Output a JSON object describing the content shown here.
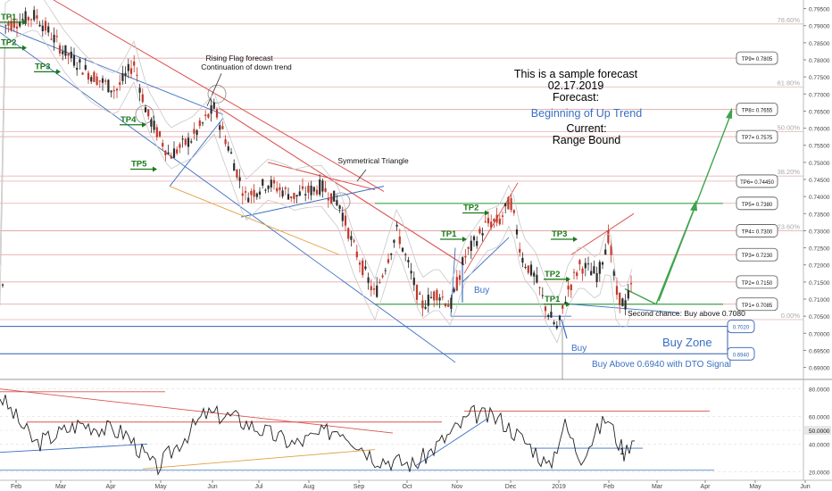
{
  "chart_data": [
    {
      "type": "candlestick",
      "timeframe_labels": [
        "Feb",
        "Mar",
        "Apr",
        "May",
        "Jun",
        "Jul",
        "Aug",
        "Sep",
        "Oct",
        "Nov",
        "Dec",
        "2019",
        "Feb",
        "Mar",
        "Apr",
        "May",
        "Jun"
      ],
      "y_ticks": [
        "0.79500",
        "0.79000",
        "0.78500",
        "0.78000",
        "0.77500",
        "0.77000",
        "0.76500",
        "0.76000",
        "0.75500",
        "0.75000",
        "0.74500",
        "0.74000",
        "0.73500",
        "0.73000",
        "0.72500",
        "0.72000",
        "0.71500",
        "0.71000",
        "0.70500",
        "0.70000",
        "0.69500",
        "0.69000"
      ],
      "fib_levels": [
        {
          "label": "78.60%",
          "price": 0.7905
        },
        {
          "label": "61.80%",
          "price": 0.772
        },
        {
          "label": "50.00%",
          "price": 0.759
        },
        {
          "label": "38.20%",
          "price": 0.746
        },
        {
          "label": "23.60%",
          "price": 0.73
        },
        {
          "label": "0.00%",
          "price": 0.704
        }
      ],
      "tp_boxes": [
        {
          "label": "TP9= 0.7805",
          "price": 0.7805
        },
        {
          "label": "TP8= 0.7655",
          "price": 0.7655
        },
        {
          "label": "TP7= 0.7575",
          "price": 0.7575
        },
        {
          "label": "TP6= 0.74450",
          "price": 0.7445
        },
        {
          "label": "TP5= 0.7380",
          "price": 0.738
        },
        {
          "label": "TP4= 0.7300",
          "price": 0.73
        },
        {
          "label": "TP3= 0.7230",
          "price": 0.723
        },
        {
          "label": "TP2= 0.7150",
          "price": 0.715
        },
        {
          "label": "TP1= 0.7085",
          "price": 0.7085
        }
      ],
      "zone_boxes": [
        {
          "label": "0.7020",
          "price": 0.702
        },
        {
          "label": "0.6940",
          "price": 0.694
        }
      ],
      "tp_markers": [
        {
          "text": "TP1",
          "color": "#1a7a1a"
        },
        {
          "text": "TP2",
          "color": "#1a7a1a"
        },
        {
          "text": "TP3",
          "color": "#1a7a1a"
        },
        {
          "text": "TP4",
          "color": "#1a7a1a"
        },
        {
          "text": "TP5",
          "color": "#1a7a1a"
        },
        {
          "text": "TP2",
          "color": "#1a7a1a"
        },
        {
          "text": "TP1",
          "color": "#1a7a1a"
        },
        {
          "text": "TP3",
          "color": "#1a7a1a"
        },
        {
          "text": "TP2",
          "color": "#1a7a1a"
        },
        {
          "text": "TP1",
          "color": "#1a7a1a"
        }
      ],
      "annotations": {
        "rising_flag_1": "Rising Flag forecast",
        "rising_flag_2": "Continuation of down trend",
        "sym_triangle": "Symmetrical Triangle",
        "buy_1": "Buy",
        "buy_2": "Buy",
        "second_chance": "Second chance: Buy above 0.7080",
        "buy_zone": "Buy Zone",
        "buy_above": "Buy Above 0.6940 with DTO Signal"
      },
      "forecast_box": {
        "line1": "This is a sample forecast",
        "line2": "02.17.2019",
        "line3": "Forecast:",
        "line4": "Beginning of Up Trend",
        "line5": "Current:",
        "line6": "Range Bound"
      },
      "colors": {
        "up": "#2b2b2b",
        "down": "#c0392b",
        "tp": "#1a7a1a",
        "resistance": "#d9534f",
        "support": "#3a6fc4",
        "buy_text": "#3a6fc4"
      }
    },
    {
      "type": "line",
      "name": "oscillator",
      "y_ticks": [
        "80.0000",
        "60.0000",
        "50.0000",
        "40.0000",
        "20.0000"
      ],
      "current_value": "50.0000",
      "marker": "1",
      "ylim": [
        15,
        85
      ]
    }
  ]
}
